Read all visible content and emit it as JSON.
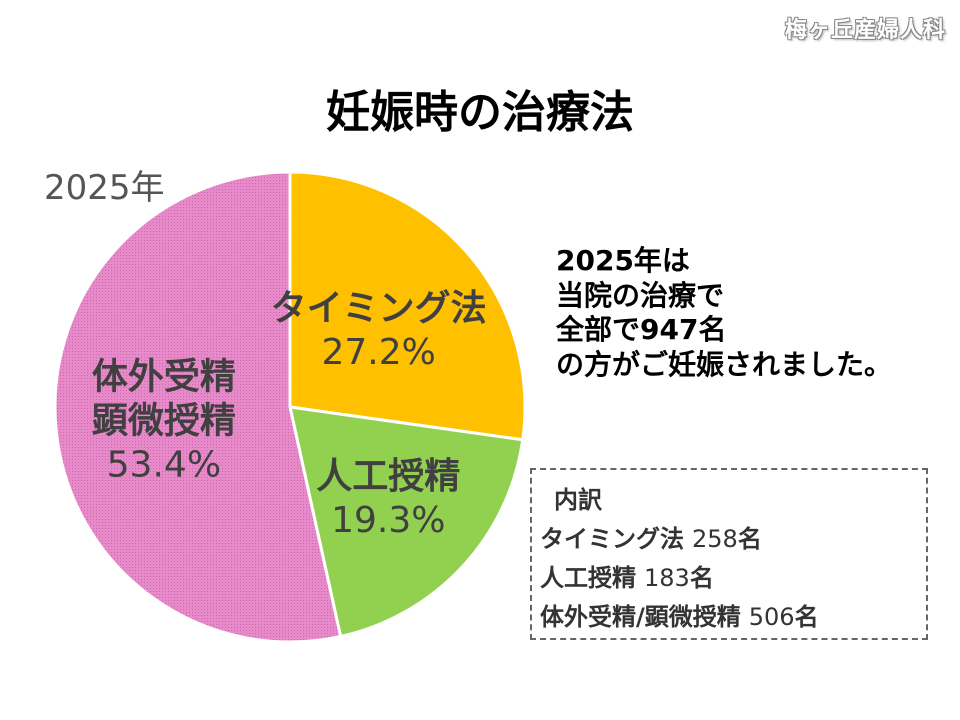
{
  "header": {
    "clinic": "梅ヶ丘産婦人科",
    "title": "妊娠時の治療法",
    "year_label": "2025年"
  },
  "chart_data": {
    "type": "pie",
    "title": "妊娠時の治療法",
    "subtitle": "2025年",
    "start": "12 o'clock, clockwise",
    "slices": [
      {
        "label": "タイミング法",
        "label_lines": [
          "タイミング法"
        ],
        "percent": 27.2,
        "percent_text": "27.2%",
        "count": 258,
        "color": "#FFC000"
      },
      {
        "label": "人工授精",
        "label_lines": [
          "人工授精"
        ],
        "percent": 19.3,
        "percent_text": "19.3%",
        "count": 183,
        "color": "#92D050"
      },
      {
        "label": "体外受精顕微授精",
        "label_lines": [
          "体外受精",
          "顕微授精"
        ],
        "percent": 53.4,
        "percent_text": "53.4%",
        "count": 506,
        "color": "#E889C9"
      }
    ]
  },
  "note": {
    "lines": [
      "2025年は",
      "当院の治療で",
      "全部で947名",
      "の方がご妊娠されました。"
    ]
  },
  "breakdown": {
    "heading": "内訳",
    "rows": [
      {
        "label": "タイミング法",
        "value": "258",
        "unit": "名"
      },
      {
        "label": "人工授精",
        "value": "183",
        "unit": "名"
      },
      {
        "label": "体外受精/顕微授精",
        "value": "506",
        "unit": "名"
      }
    ]
  },
  "colors": {
    "pattern_dot": "#c86ab0",
    "label_text": "#404040"
  }
}
